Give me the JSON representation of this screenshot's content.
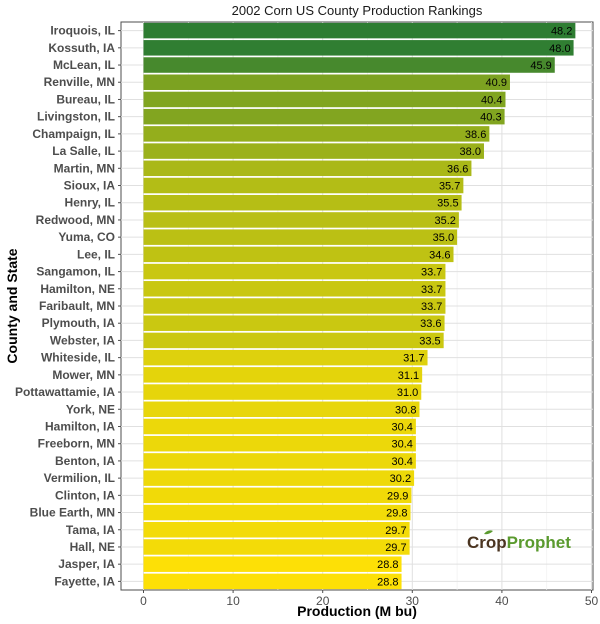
{
  "chart_data": {
    "type": "bar",
    "orientation": "horizontal",
    "title": "2002 Corn US County Production Rankings",
    "xlabel": "Production (M bu)",
    "ylabel": "County and State",
    "xlim": [
      0,
      50
    ],
    "xticks": [
      0,
      10,
      20,
      30,
      40,
      50
    ],
    "grid": true,
    "legend": "none",
    "color_low": "#fde006",
    "color_high": "#2e7d32",
    "categories": [
      "Iroquois, IL",
      "Kossuth, IA",
      "McLean, IL",
      "Renville, MN",
      "Bureau, IL",
      "Livingston, IL",
      "Champaign, IL",
      "La Salle, IL",
      "Martin, MN",
      "Sioux, IA",
      "Henry, IL",
      "Redwood, MN",
      "Yuma, CO",
      "Lee, IL",
      "Sangamon, IL",
      "Hamilton, NE",
      "Faribault, MN",
      "Plymouth, IA",
      "Webster, IA",
      "Whiteside, IL",
      "Mower, MN",
      "Pottawattamie, IA",
      "York, NE",
      "Hamilton, IA",
      "Freeborn, MN",
      "Benton, IA",
      "Vermilion, IL",
      "Clinton, IA",
      "Blue Earth, MN",
      "Tama, IA",
      "Hall, NE",
      "Jasper, IA",
      "Fayette, IA"
    ],
    "values": [
      48.2,
      48.0,
      45.9,
      40.9,
      40.4,
      40.3,
      38.6,
      38.0,
      36.6,
      35.7,
      35.5,
      35.2,
      35.0,
      34.6,
      33.7,
      33.7,
      33.7,
      33.6,
      33.5,
      31.7,
      31.1,
      31.0,
      30.8,
      30.4,
      30.4,
      30.4,
      30.2,
      29.9,
      29.8,
      29.7,
      29.7,
      28.8,
      28.8
    ],
    "value_labels": [
      "48.2",
      "48.0",
      "45.9",
      "40.9",
      "40.4",
      "40.3",
      "38.6",
      "38.0",
      "36.6",
      "35.7",
      "35.5",
      "35.2",
      "35.0",
      "34.6",
      "33.7",
      "33.7",
      "33.7",
      "33.6",
      "33.5",
      "31.7",
      "31.1",
      "31.0",
      "30.8",
      "30.4",
      "30.4",
      "30.4",
      "30.2",
      "29.9",
      "29.8",
      "29.7",
      "29.7",
      "28.8",
      "28.8"
    ]
  },
  "logo": {
    "part1": "Crop",
    "part2": "Prophet"
  }
}
